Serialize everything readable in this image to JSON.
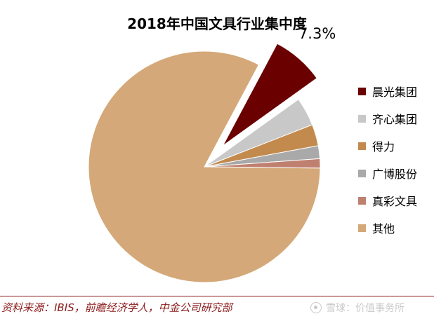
{
  "chart_data": {
    "type": "pie",
    "title": "2018年中国文具行业集中度",
    "slices": [
      {
        "label": "晨光集团",
        "value": 7.3,
        "value_label": "7.3%",
        "color": "#6b0000",
        "exploded": true
      },
      {
        "label": "齐心集团",
        "value": 4.0,
        "color": "#c8c8c8"
      },
      {
        "label": "得力",
        "value": 3.0,
        "color": "#c38a4e"
      },
      {
        "label": "广博股份",
        "value": 1.8,
        "color": "#a9a9a9"
      },
      {
        "label": "真彩文具",
        "value": 1.3,
        "color": "#c08070"
      },
      {
        "label": "其他",
        "value": 82.6,
        "color": "#d4a878"
      }
    ],
    "legend_position": "right"
  },
  "source_note": "资料来源：IBIS，前瞻经济学人，中金公司研究部",
  "watermark": {
    "text": "雪球：价值事务所",
    "icon": "snowball-logo-icon"
  }
}
